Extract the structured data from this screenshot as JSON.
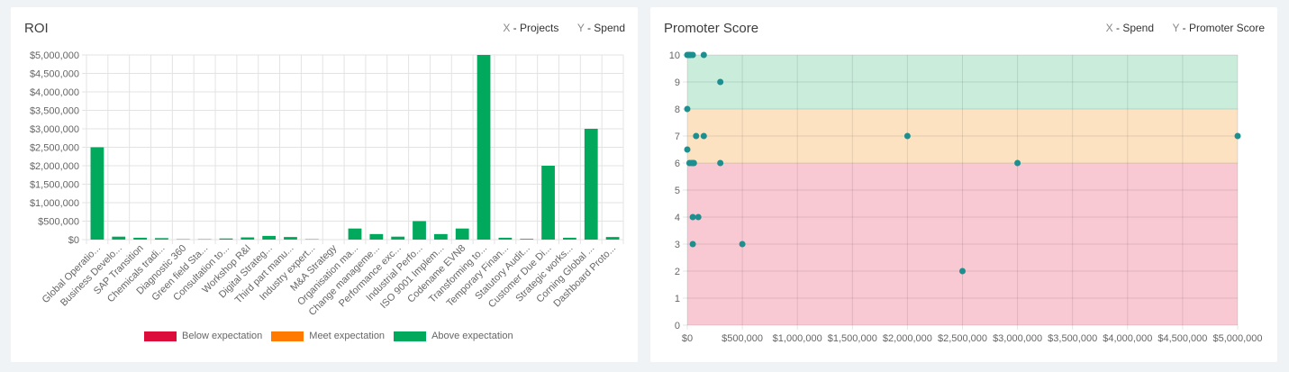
{
  "roi_card": {
    "title": "ROI",
    "x_key": "X",
    "x_label": "- Projects",
    "y_key": "Y",
    "y_label": "- Spend",
    "legend": [
      {
        "label": "Below expectation",
        "color": "#dc0d3a"
      },
      {
        "label": "Meet expectation",
        "color": "#ff7a00"
      },
      {
        "label": "Above expectation",
        "color": "#00a95c"
      }
    ]
  },
  "ps_card": {
    "title": "Promoter Score",
    "x_key": "X",
    "x_label": "- Spend",
    "y_key": "Y",
    "y_label": "- Promoter Score"
  },
  "chart_data": [
    {
      "type": "bar",
      "categories": [
        "Global Operatio...",
        "Business Develo...",
        "SAP Transition",
        "Chemicals tradi...",
        "Diagnostic 360",
        "Green field Sta...",
        "Consultation to...",
        "Workshop R&I",
        "Digital Strateg...",
        "Third part manu...",
        "Industry expert...",
        "M&A Strategy",
        "Organisation ma...",
        "Change manageme...",
        "Performance exc...",
        "Industrial Perfo...",
        "ISO 9001 Implem...",
        "Codename EVN8",
        "Transforming to...",
        "Temporary Finan...",
        "Statutory Audit...",
        "Customer Due Di...",
        "Strategic works...",
        "Corning Global ...",
        "Dashboard Proto..."
      ],
      "values": [
        2500000,
        80000,
        50000,
        40000,
        10000,
        10000,
        30000,
        60000,
        100000,
        70000,
        10000,
        0,
        300000,
        150000,
        80000,
        500000,
        150000,
        300000,
        5000000,
        50000,
        20000,
        2000000,
        50000,
        3000000,
        70000
      ],
      "y_ticks": [
        "$0",
        "$500,000",
        "$1,000,000",
        "$1,500,000",
        "$2,000,000",
        "$2,500,000",
        "$3,000,000",
        "$3,500,000",
        "$4,000,000",
        "$4,500,000",
        "$5,000,000"
      ],
      "ylim": [
        0,
        5000000
      ],
      "bar_color": "#00a95c",
      "grid": true
    },
    {
      "type": "scatter",
      "points": [
        [
          0,
          10
        ],
        [
          10000,
          10
        ],
        [
          20000,
          10
        ],
        [
          30000,
          10
        ],
        [
          50000,
          10
        ],
        [
          150000,
          10
        ],
        [
          300000,
          9
        ],
        [
          0,
          8
        ],
        [
          80000,
          7
        ],
        [
          150000,
          7
        ],
        [
          2000000,
          7
        ],
        [
          5000000,
          7
        ],
        [
          0,
          6.5
        ],
        [
          20000,
          6
        ],
        [
          40000,
          6
        ],
        [
          50000,
          6
        ],
        [
          60000,
          6
        ],
        [
          300000,
          6
        ],
        [
          3000000,
          6
        ],
        [
          50000,
          4
        ],
        [
          100000,
          4
        ],
        [
          50000,
          3
        ],
        [
          500000,
          3
        ],
        [
          2500000,
          2
        ]
      ],
      "x_ticks": [
        "$0",
        "$500,000",
        "$1,000,000",
        "$1,500,000",
        "$2,000,000",
        "$2,500,000",
        "$3,000,000",
        "$3,500,000",
        "$4,000,000",
        "$4,500,000",
        "$5,000,000"
      ],
      "xlim": [
        0,
        5000000
      ],
      "y_ticks": [
        "0",
        "1",
        "2",
        "3",
        "4",
        "5",
        "6",
        "7",
        "8",
        "9",
        "10"
      ],
      "ylim": [
        0,
        10
      ],
      "bands": [
        {
          "from": 0,
          "to": 6,
          "color": "#f9c9d3"
        },
        {
          "from": 6,
          "to": 8,
          "color": "#fde2c2"
        },
        {
          "from": 8,
          "to": 10,
          "color": "#c9ecdb"
        }
      ],
      "point_color": "#1e8f8f",
      "grid": true
    }
  ]
}
